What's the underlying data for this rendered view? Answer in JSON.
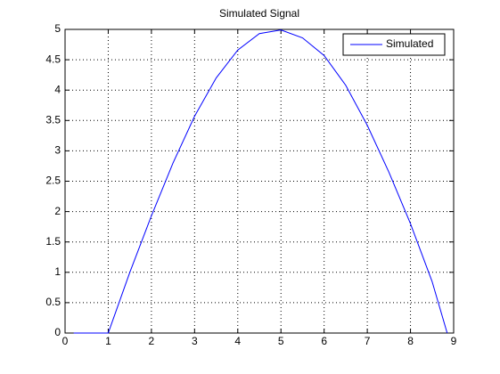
{
  "chart_data": {
    "type": "line",
    "title": "Simulated Signal",
    "x": [
      0.2,
      0.5,
      1,
      1.5,
      2,
      2.5,
      3,
      3.5,
      4,
      4.5,
      5,
      5.5,
      6,
      6.5,
      7,
      7.5,
      8,
      8.5,
      8.85
    ],
    "series": [
      {
        "name": "Simulated",
        "color": "#0000ff",
        "values": [
          0,
          0,
          0,
          1.0,
          1.93,
          2.8,
          3.57,
          4.2,
          4.66,
          4.93,
          4.99,
          4.86,
          4.57,
          4.08,
          3.42,
          2.65,
          1.8,
          0.85,
          0
        ]
      }
    ],
    "xlim": [
      0,
      9
    ],
    "xticks": [
      0,
      1,
      2,
      3,
      4,
      5,
      6,
      7,
      8,
      9
    ],
    "ylim": [
      0,
      5
    ],
    "yticks": [
      0,
      0.5,
      1,
      1.5,
      2,
      2.5,
      3,
      3.5,
      4,
      4.5,
      5
    ],
    "grid": true,
    "legend": "northeast"
  }
}
